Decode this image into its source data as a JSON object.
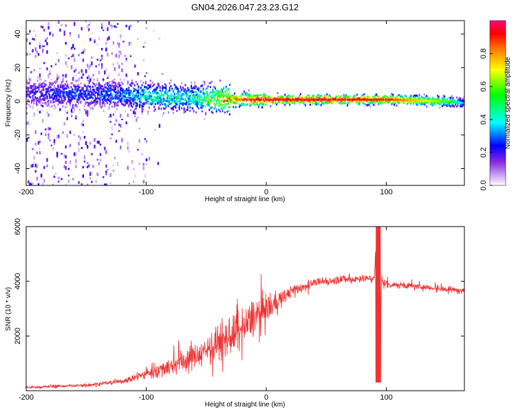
{
  "title": "GN04.2026.047.23.23.G12",
  "chart_data": [
    {
      "type": "heatmap",
      "title": "GN04.2026.047.23.23.G12",
      "xlabel": "Height of straight line (km)",
      "ylabel": "Frequency (Hz)",
      "xlim": [
        -200,
        165
      ],
      "ylim": [
        -50,
        48
      ],
      "xticks": [
        -200,
        -100,
        0,
        100
      ],
      "yticks": [
        -40,
        -20,
        0,
        20,
        40
      ],
      "colorbar": {
        "label": "Normalized spectral amplitude",
        "range": [
          0.0,
          1.0
        ],
        "ticks": [
          "0.0",
          "0.2",
          "0.4",
          "0.6",
          "0.8"
        ],
        "colormap_stops": [
          "#ffffff",
          "#8a2be2",
          "#0000ff",
          "#00ffff",
          "#00ff00",
          "#ffff00",
          "#ff8000",
          "#ff0000",
          "#ff0080"
        ]
      },
      "ridge": {
        "description_points_x": [
          -200,
          -120,
          -100,
          -60,
          -25,
          0,
          50,
          100,
          150,
          165
        ],
        "center_freq": [
          5,
          4,
          3,
          2,
          1,
          1,
          1,
          1,
          0,
          -1
        ],
        "peak_amplitude": [
          0.22,
          0.3,
          0.42,
          0.45,
          0.85,
          0.95,
          0.95,
          0.9,
          0.6,
          0.3
        ]
      }
    },
    {
      "type": "line",
      "xlabel": "Height of straight line (km)",
      "ylabel": "SNR (10 * v/v)",
      "xlim": [
        -200,
        165
      ],
      "ylim": [
        0,
        6000
      ],
      "xticks": [
        -200,
        -100,
        0,
        100
      ],
      "yticks": [
        2000,
        4000,
        6000
      ],
      "color": "#ee3333",
      "envelope_x": [
        -200,
        -150,
        -120,
        -100,
        -80,
        -60,
        -40,
        -20,
        -10,
        0,
        10,
        20,
        40,
        60,
        80,
        90,
        92,
        94,
        96,
        100,
        130,
        165
      ],
      "envelope_y": [
        120,
        200,
        350,
        600,
        900,
        1250,
        1700,
        2200,
        2700,
        3000,
        3300,
        3600,
        3950,
        4050,
        4100,
        4100,
        6000,
        150,
        4000,
        3900,
        3800,
        3650
      ],
      "noise_amp": [
        60,
        80,
        120,
        250,
        500,
        700,
        900,
        1000,
        1000,
        700,
        500,
        300,
        200,
        200,
        200,
        200,
        0,
        0,
        200,
        200,
        150,
        150
      ]
    }
  ]
}
